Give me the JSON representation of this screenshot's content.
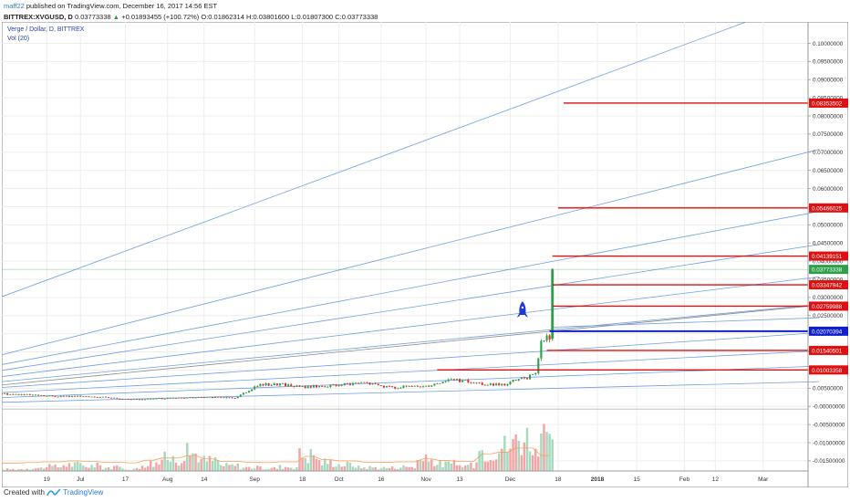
{
  "header": {
    "author": "maff22",
    "published_text": "published on TradingView.com, December 16, 2017 14:56 EST",
    "symbol": "BITTREX:XVGUSD, D",
    "last": "0.03773338",
    "change": "+0.01893455 (+100.72%)",
    "open": "O:0.01862314",
    "high": "H:0.03801600",
    "low": "L:0.01807300",
    "close": "C:0.03773338"
  },
  "legend": {
    "symbol_title": "Verge / Dollar, D, BITTREX",
    "volume": "Vol (20)"
  },
  "footer": {
    "created_with": "Created with",
    "brand": "TradingView"
  },
  "colors": {
    "up": "#2e9e48",
    "down": "#d32f2f",
    "fan": "#6f9fe0",
    "horizontal": "#e01010",
    "support": "#1020d0",
    "vol_up": "#a8d8bd",
    "vol_down": "#f3a5a5",
    "vol_ma": "#f2a35c",
    "rocket": "#1f3bd6"
  },
  "chart_data": {
    "type": "candlestick",
    "price_axis": {
      "ylim": [
        -0.0178,
        0.1059
      ],
      "ticks": [
        {
          "v": 0.1,
          "label": "0.10000000"
        },
        {
          "v": 0.095,
          "label": "0.09500000"
        },
        {
          "v": 0.09,
          "label": "0.09000000"
        },
        {
          "v": 0.085,
          "label": "0.08500000"
        },
        {
          "v": 0.08,
          "label": "0.08000000"
        },
        {
          "v": 0.075,
          "label": "0.07500000"
        },
        {
          "v": 0.07,
          "label": "0.07000000"
        },
        {
          "v": 0.065,
          "label": "0.06500000"
        },
        {
          "v": 0.06,
          "label": "0.06000000"
        },
        {
          "v": 0.055,
          "label": "0.05500000"
        },
        {
          "v": 0.05,
          "label": "0.05000000"
        },
        {
          "v": 0.045,
          "label": "0.04500000"
        },
        {
          "v": 0.04,
          "label": "0.04000000"
        },
        {
          "v": 0.035,
          "label": "0.03500000"
        },
        {
          "v": 0.03,
          "label": "0.03000000"
        },
        {
          "v": 0.025,
          "label": "0.02500000"
        },
        {
          "v": 0.02,
          "label": "0.02000000"
        },
        {
          "v": 0.015,
          "label": "0.01500000"
        },
        {
          "v": 0.01,
          "label": "0.01000000"
        },
        {
          "v": 0.005,
          "label": "0.00500000"
        },
        {
          "v": 0.0,
          "label": "-0.00000000"
        },
        {
          "v": -0.005,
          "label": "-0.00500000"
        },
        {
          "v": -0.01,
          "label": "-0.01000000"
        },
        {
          "v": -0.015,
          "label": "-0.01500000"
        }
      ]
    },
    "time_axis": {
      "x_domain": [
        "2017-06-03",
        "2018-03-17"
      ],
      "ticks": [
        {
          "date": "2017-06-19",
          "label": "19"
        },
        {
          "date": "2017-07-01",
          "label": "Jul"
        },
        {
          "date": "2017-07-17",
          "label": "17"
        },
        {
          "date": "2017-08-01",
          "label": "Aug"
        },
        {
          "date": "2017-08-14",
          "label": "14"
        },
        {
          "date": "2017-09-01",
          "label": "Sep"
        },
        {
          "date": "2017-09-18",
          "label": "18"
        },
        {
          "date": "2017-10-01",
          "label": "Oct"
        },
        {
          "date": "2017-10-16",
          "label": "16"
        },
        {
          "date": "2017-11-01",
          "label": "Nov"
        },
        {
          "date": "2017-11-13",
          "label": "13"
        },
        {
          "date": "2017-12-01",
          "label": "Dec"
        },
        {
          "date": "2017-12-18",
          "label": "18"
        },
        {
          "date": "2018-01-01",
          "label": "2018",
          "bold": true
        },
        {
          "date": "2018-01-15",
          "label": "15"
        },
        {
          "date": "2018-02-01",
          "label": "Feb"
        },
        {
          "date": "2018-02-12",
          "label": "12"
        },
        {
          "date": "2018-03-01",
          "label": "Mar"
        }
      ]
    },
    "price_series": [
      {
        "date": "2017-06-03",
        "value": 0.0035
      },
      {
        "date": "2017-06-20",
        "value": 0.0028
      },
      {
        "date": "2017-07-05",
        "value": 0.0027
      },
      {
        "date": "2017-07-20",
        "value": 0.0019
      },
      {
        "date": "2017-08-01",
        "value": 0.0022
      },
      {
        "date": "2017-08-15",
        "value": 0.0025
      },
      {
        "date": "2017-08-25",
        "value": 0.0024
      },
      {
        "date": "2017-09-02",
        "value": 0.0058
      },
      {
        "date": "2017-09-10",
        "value": 0.0062
      },
      {
        "date": "2017-09-18",
        "value": 0.0053
      },
      {
        "date": "2017-10-01",
        "value": 0.0058
      },
      {
        "date": "2017-10-10",
        "value": 0.0065
      },
      {
        "date": "2017-10-20",
        "value": 0.0052
      },
      {
        "date": "2017-11-01",
        "value": 0.0056
      },
      {
        "date": "2017-11-10",
        "value": 0.0075
      },
      {
        "date": "2017-11-20",
        "value": 0.0062
      },
      {
        "date": "2017-11-28",
        "value": 0.0058
      },
      {
        "date": "2017-12-04",
        "value": 0.0074
      },
      {
        "date": "2017-12-08",
        "value": 0.0082
      },
      {
        "date": "2017-12-10",
        "value": 0.0095
      },
      {
        "date": "2017-12-11",
        "value": 0.0132
      },
      {
        "date": "2017-12-12",
        "value": 0.0175
      },
      {
        "date": "2017-12-13",
        "value": 0.0185
      },
      {
        "date": "2017-12-14",
        "value": 0.0188
      },
      {
        "date": "2017-12-15",
        "value": 0.0186
      },
      {
        "date": "2017-12-16",
        "value": 0.0377
      }
    ],
    "last_candle": {
      "date": "2017-12-16",
      "open": 0.01862314,
      "high": 0.038016,
      "low": 0.018073,
      "close": 0.03773338
    },
    "price_labels": [
      {
        "value": 0.08353502,
        "label": "0.08353502",
        "start": "2017-12-20"
      },
      {
        "value": 0.05466025,
        "label": "0.05466025",
        "start": "2017-12-18"
      },
      {
        "value": 0.04139151,
        "label": "0.04139151",
        "start": "2017-12-16"
      },
      {
        "value": 0.03773338,
        "label": "0.03773338",
        "kind": "last"
      },
      {
        "value": 0.03347942,
        "label": "0.03347942",
        "start": "2017-12-16"
      },
      {
        "value": 0.02759988,
        "label": "0.02759988",
        "start": "2017-12-16"
      },
      {
        "value": 0.0207039,
        "label": "0.02070394",
        "start": "2017-12-15",
        "kind": "support"
      },
      {
        "value": 0.0154,
        "label": "0.01540501",
        "start": "2017-12-14"
      },
      {
        "value": 0.01003,
        "label": "0.01003358",
        "start": "2017-11-05"
      }
    ],
    "fan_lines": [
      {
        "from": [
          "2017-06-03",
          0.0302
        ],
        "to": [
          "2018-02-23",
          0.1059
        ]
      },
      {
        "from": [
          "2017-06-03",
          0.0142
        ],
        "to": [
          "2018-03-21",
          0.0708
        ]
      },
      {
        "from": [
          "2017-06-03",
          0.0115
        ],
        "to": [
          "2018-03-21",
          0.0537
        ]
      },
      {
        "from": [
          "2017-06-03",
          0.0099
        ],
        "to": [
          "2018-03-21",
          0.0446
        ]
      },
      {
        "from": [
          "2017-06-03",
          0.0082
        ],
        "to": [
          "2018-03-21",
          0.0357
        ]
      },
      {
        "from": [
          "2017-06-03",
          0.0068
        ],
        "to": [
          "2018-03-21",
          0.0281
        ]
      },
      {
        "from": [
          "2017-06-03",
          0.0052
        ],
        "to": [
          "2018-03-21",
          0.0203
        ]
      },
      {
        "from": [
          "2017-06-03",
          0.0038
        ],
        "to": [
          "2018-03-21",
          0.0153
        ]
      },
      {
        "from": [
          "2017-06-03",
          0.0024
        ],
        "to": [
          "2018-03-21",
          0.0111
        ]
      },
      {
        "from": [
          "2017-06-03",
          0.0011
        ],
        "to": [
          "2018-03-21",
          0.0068
        ]
      }
    ],
    "trend_lines": [
      {
        "from": [
          "2017-06-03",
          0.0059
        ],
        "to": [
          "2018-03-21",
          0.0279
        ],
        "color": "#8a8a8a"
      },
      {
        "from": [
          "2017-12-16",
          0.0218
        ],
        "to": [
          "2018-03-21",
          0.0244
        ],
        "color": "#7aa0d8"
      }
    ],
    "anchor_line": {
      "from": [
        "2017-12-20",
        0.0836
      ],
      "to": [
        "2018-03-17",
        0.0836
      ]
    },
    "volume": {
      "axis_range": [
        0,
        1
      ],
      "levels": [
        0.05,
        0.08,
        0.12,
        0.18,
        0.15,
        0.1,
        0.06,
        0.22,
        0.35,
        0.5,
        0.3,
        0.15,
        0.1,
        0.08,
        0.12,
        0.45,
        0.25,
        0.18,
        0.1,
        0.09,
        0.12,
        0.3,
        0.2,
        0.15,
        0.6,
        0.7,
        0.95,
        0.5
      ],
      "ma_label": "Vol (20)"
    }
  }
}
